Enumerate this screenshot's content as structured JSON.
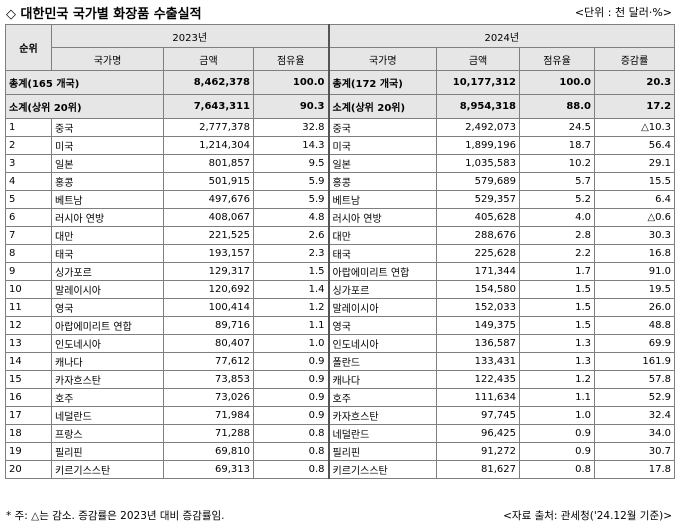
{
  "title": "◇ 대한민국 국가별 화장품 수출실적",
  "unit": "<단위 : 천 달러·%>",
  "headers": {
    "rank": "순위",
    "year_a": "2023년",
    "year_b": "2024년",
    "country": "국가명",
    "amount": "금액",
    "share": "점유율",
    "change": "증감률"
  },
  "total": {
    "a_label": "총계(165 개국)",
    "a_amount": "8,462,378",
    "a_share": "100.0",
    "b_label": "총계(172 개국)",
    "b_amount": "10,177,312",
    "b_share": "100.0",
    "b_change": "20.3"
  },
  "subtotal": {
    "a_label": "소계(상위 20위)",
    "a_amount": "7,643,311",
    "a_share": "90.3",
    "b_label": "소계(상위 20위)",
    "b_amount": "8,954,318",
    "b_share": "88.0",
    "b_change": "17.2"
  },
  "rows": [
    {
      "rank": "1",
      "a_country": "중국",
      "a_amount": "2,777,378",
      "a_share": "32.8",
      "b_country": "중국",
      "b_amount": "2,492,073",
      "b_share": "24.5",
      "b_change": "△10.3"
    },
    {
      "rank": "2",
      "a_country": "미국",
      "a_amount": "1,214,304",
      "a_share": "14.3",
      "b_country": "미국",
      "b_amount": "1,899,196",
      "b_share": "18.7",
      "b_change": "56.4"
    },
    {
      "rank": "3",
      "a_country": "일본",
      "a_amount": "801,857",
      "a_share": "9.5",
      "b_country": "일본",
      "b_amount": "1,035,583",
      "b_share": "10.2",
      "b_change": "29.1"
    },
    {
      "rank": "4",
      "a_country": "홍콩",
      "a_amount": "501,915",
      "a_share": "5.9",
      "b_country": "홍콩",
      "b_amount": "579,689",
      "b_share": "5.7",
      "b_change": "15.5"
    },
    {
      "rank": "5",
      "a_country": "베트남",
      "a_amount": "497,676",
      "a_share": "5.9",
      "b_country": "베트남",
      "b_amount": "529,357",
      "b_share": "5.2",
      "b_change": "6.4"
    },
    {
      "rank": "6",
      "a_country": "러시아 연방",
      "a_amount": "408,067",
      "a_share": "4.8",
      "b_country": "러시아 연방",
      "b_amount": "405,628",
      "b_share": "4.0",
      "b_change": "△0.6"
    },
    {
      "rank": "7",
      "a_country": "대만",
      "a_amount": "221,525",
      "a_share": "2.6",
      "b_country": "대만",
      "b_amount": "288,676",
      "b_share": "2.8",
      "b_change": "30.3"
    },
    {
      "rank": "8",
      "a_country": "태국",
      "a_amount": "193,157",
      "a_share": "2.3",
      "b_country": "태국",
      "b_amount": "225,628",
      "b_share": "2.2",
      "b_change": "16.8"
    },
    {
      "rank": "9",
      "a_country": "싱가포르",
      "a_amount": "129,317",
      "a_share": "1.5",
      "b_country": "아랍에미리트 연합",
      "b_amount": "171,344",
      "b_share": "1.7",
      "b_change": "91.0"
    },
    {
      "rank": "10",
      "a_country": "말레이시아",
      "a_amount": "120,692",
      "a_share": "1.4",
      "b_country": "싱가포르",
      "b_amount": "154,580",
      "b_share": "1.5",
      "b_change": "19.5"
    },
    {
      "rank": "11",
      "a_country": "영국",
      "a_amount": "100,414",
      "a_share": "1.2",
      "b_country": "말레이시아",
      "b_amount": "152,033",
      "b_share": "1.5",
      "b_change": "26.0"
    },
    {
      "rank": "12",
      "a_country": "아랍에미리트 연합",
      "a_amount": "89,716",
      "a_share": "1.1",
      "b_country": "영국",
      "b_amount": "149,375",
      "b_share": "1.5",
      "b_change": "48.8"
    },
    {
      "rank": "13",
      "a_country": "인도네시아",
      "a_amount": "80,407",
      "a_share": "1.0",
      "b_country": "인도네시아",
      "b_amount": "136,587",
      "b_share": "1.3",
      "b_change": "69.9"
    },
    {
      "rank": "14",
      "a_country": "캐나다",
      "a_amount": "77,612",
      "a_share": "0.9",
      "b_country": "폴란드",
      "b_amount": "133,431",
      "b_share": "1.3",
      "b_change": "161.9"
    },
    {
      "rank": "15",
      "a_country": "카자흐스탄",
      "a_amount": "73,853",
      "a_share": "0.9",
      "b_country": "캐나다",
      "b_amount": "122,435",
      "b_share": "1.2",
      "b_change": "57.8"
    },
    {
      "rank": "16",
      "a_country": "호주",
      "a_amount": "73,026",
      "a_share": "0.9",
      "b_country": "호주",
      "b_amount": "111,634",
      "b_share": "1.1",
      "b_change": "52.9"
    },
    {
      "rank": "17",
      "a_country": "네덜란드",
      "a_amount": "71,984",
      "a_share": "0.9",
      "b_country": "카자흐스탄",
      "b_amount": "97,745",
      "b_share": "1.0",
      "b_change": "32.4"
    },
    {
      "rank": "18",
      "a_country": "프랑스",
      "a_amount": "71,288",
      "a_share": "0.8",
      "b_country": "네덜란드",
      "b_amount": "96,425",
      "b_share": "0.9",
      "b_change": "34.0"
    },
    {
      "rank": "19",
      "a_country": "필리핀",
      "a_amount": "69,810",
      "a_share": "0.8",
      "b_country": "필리핀",
      "b_amount": "91,272",
      "b_share": "0.9",
      "b_change": "30.7"
    },
    {
      "rank": "20",
      "a_country": "키르기스스탄",
      "a_amount": "69,313",
      "a_share": "0.8",
      "b_country": "키르기스스탄",
      "b_amount": "81,627",
      "b_share": "0.8",
      "b_change": "17.8"
    }
  ],
  "footer": {
    "note": "* 주: △는 감소. 증감률은 2023년 대비 증감률임.",
    "source": "<자료 출처: 관세청('24.12월 기준)>"
  }
}
